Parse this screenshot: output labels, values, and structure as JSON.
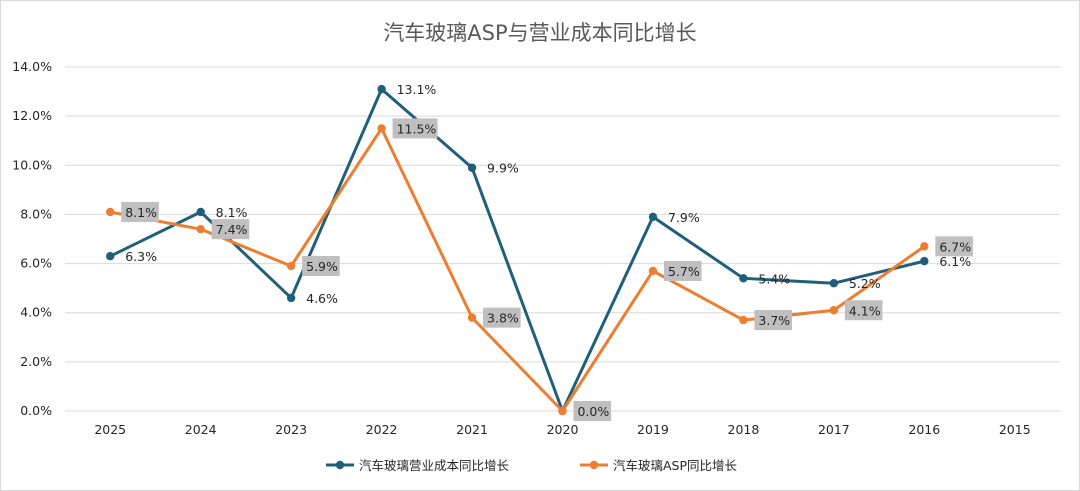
{
  "chart_data": {
    "type": "line",
    "title": "汽车玻璃ASP与营业成本同比增长",
    "categories": [
      "2025",
      "2024",
      "2023",
      "2022",
      "2021",
      "2020",
      "2019",
      "2018",
      "2017",
      "2016",
      "2015"
    ],
    "ylim": [
      0,
      14
    ],
    "yticks": [
      0,
      2,
      4,
      6,
      8,
      10,
      12,
      14
    ],
    "ytick_labels": [
      "0.0%",
      "2.0%",
      "4.0%",
      "6.0%",
      "8.0%",
      "10.0%",
      "12.0%",
      "14.0%"
    ],
    "grid": true,
    "legend_position": "bottom",
    "series": [
      {
        "name": "汽车玻璃营业成本同比增长",
        "color": "#1f5f7a",
        "values": [
          6.3,
          8.1,
          4.6,
          13.1,
          9.9,
          0.0,
          7.9,
          5.4,
          5.2,
          6.1,
          null
        ],
        "labels": [
          "6.3%",
          "8.1%",
          "4.6%",
          "13.1%",
          "9.9%",
          "",
          "7.9%",
          "5.4%",
          "5.2%",
          "6.1%",
          ""
        ]
      },
      {
        "name": "汽车玻璃ASP同比增长",
        "color": "#ed7d31",
        "values": [
          8.1,
          7.4,
          5.9,
          11.5,
          3.8,
          0.0,
          5.7,
          3.7,
          4.1,
          6.7,
          null
        ],
        "labels": [
          "8.1%",
          "7.4%",
          "5.9%",
          "11.5%",
          "3.8%",
          "0.0%",
          "5.7%",
          "3.7%",
          "4.1%",
          "6.7%",
          ""
        ]
      }
    ]
  }
}
